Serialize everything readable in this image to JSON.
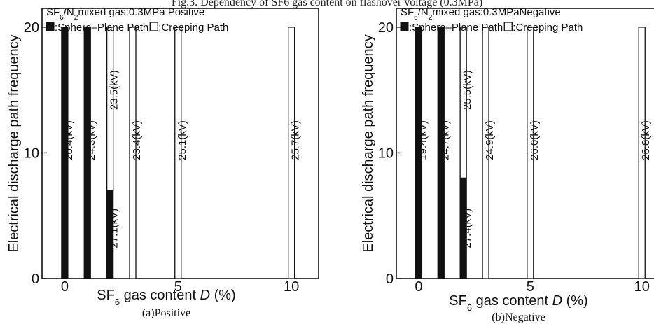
{
  "figure_title": "Fig.3. Dependency of SF6 gas content on flashover voltage (0.3MPa)",
  "chart_data": [
    {
      "type": "bar",
      "panel_caption": "(a)Positive",
      "legend_title": "SF6/N2mixed gas:0.3MPa Positive",
      "legend": {
        "filled": ":Sphere–Plane Path",
        "open": ":Creeping Path"
      },
      "xlabel": "SF6 gas content D (%)",
      "ylabel": "Electrical discharge path frequency",
      "xlim": [
        -1,
        11.2
      ],
      "ylim": [
        0,
        21.5
      ],
      "x_ticks": [
        0,
        5,
        10
      ],
      "y_ticks": [
        0,
        10,
        20
      ],
      "bars": [
        {
          "x": 0,
          "series": "Sphere–Plane Path",
          "value": 20,
          "label": "20.4(kV)"
        },
        {
          "x": 1,
          "series": "Sphere–Plane Path",
          "value": 20,
          "label": "24.3(kV)"
        },
        {
          "x": 2,
          "series": "Sphere–Plane Path",
          "value": 7,
          "label": "27.1(kV)"
        },
        {
          "x": 2,
          "series": "Creeping Path",
          "value": 13,
          "label": "23.5(kV)"
        },
        {
          "x": 3,
          "series": "Creeping Path",
          "value": 20,
          "label": "23.4(kV)"
        },
        {
          "x": 5,
          "series": "Creeping Path",
          "value": 20,
          "label": "25.1(kV)"
        },
        {
          "x": 10,
          "series": "Creeping Path",
          "value": 20,
          "label": "25.7(kV)"
        }
      ]
    },
    {
      "type": "bar",
      "panel_caption": "(b)Negative",
      "legend_title": "SF6/N2mixed gas:0.3MPaNegative",
      "legend": {
        "filled": ":Sphere–Plane Path",
        "open": ":Creeping Path"
      },
      "xlabel": "SF6 gas content D (%)",
      "ylabel": "Electrical discharge path frequency",
      "xlim": [
        -1,
        11.2
      ],
      "ylim": [
        0,
        21.5
      ],
      "x_ticks": [
        0,
        5,
        10
      ],
      "y_ticks": [
        0,
        10,
        20
      ],
      "bars": [
        {
          "x": 0,
          "series": "Sphere–Plane Path",
          "value": 20,
          "label": "19.4(kV)"
        },
        {
          "x": 1,
          "series": "Sphere–Plane Path",
          "value": 20,
          "label": "24.7(kV)"
        },
        {
          "x": 2,
          "series": "Sphere–Plane Path",
          "value": 8,
          "label": "27.4(kV)"
        },
        {
          "x": 2,
          "series": "Creeping Path",
          "value": 12,
          "label": "25.5(kV)"
        },
        {
          "x": 3,
          "series": "Creeping Path",
          "value": 20,
          "label": "24.9(kV)"
        },
        {
          "x": 5,
          "series": "Creeping Path",
          "value": 20,
          "label": "26.0(kV)"
        },
        {
          "x": 10,
          "series": "Creeping Path",
          "value": 20,
          "label": "26.8(kV)"
        }
      ]
    }
  ]
}
